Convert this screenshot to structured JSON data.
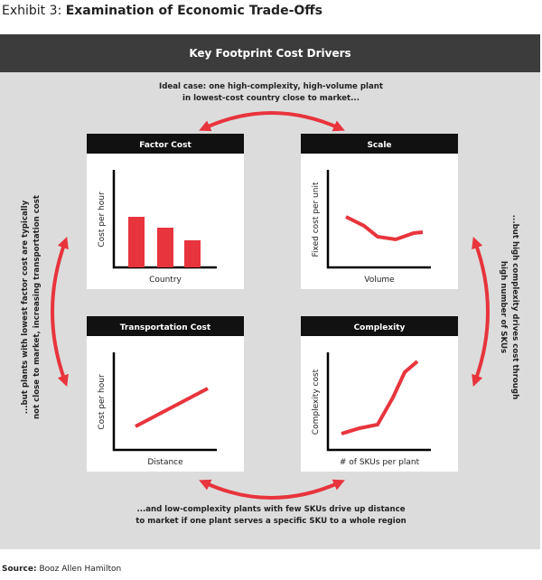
{
  "title": {
    "prefix": "Exhibit 3:",
    "main": "Examination of Economic Trade-Offs"
  },
  "header": "Key Footprint Cost Drivers",
  "annotations": {
    "top": [
      "Ideal case: one high-complexity, high-volume plant",
      "in lowest-cost country close to market..."
    ],
    "bottom": [
      "...and low-complexity plants with few SKUs drive up distance",
      "to market if one plant serves a specific SKU to a whole region"
    ],
    "left": [
      "...but plants with lowest factor cost are typically",
      "not close to market, increasing transportation cost"
    ],
    "right": [
      "...but high complexity drives cost through",
      "high number of SKUs"
    ]
  },
  "panels": [
    {
      "title": "Factor Cost",
      "y_label": "Cost per hour",
      "x_label": "Country"
    },
    {
      "title": "Scale",
      "y_label": "Fixed cost per unit",
      "x_label": "Volume"
    },
    {
      "title": "Transportation Cost",
      "y_label": "Cost per hour",
      "x_label": "Distance"
    },
    {
      "title": "Complexity",
      "y_label": "Complexity cost",
      "x_label": "# of SKUs per plant"
    }
  ],
  "source": {
    "label": "Source:",
    "text": "Booz Allen Hamilton"
  }
}
